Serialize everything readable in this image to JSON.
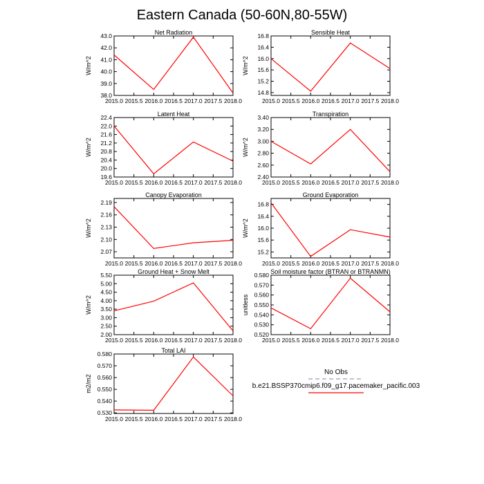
{
  "page_title": "Eastern Canada (50-60N,80-55W)",
  "legend": {
    "obs_label": "No Obs",
    "obs_color": "#aaaacc",
    "model_label": "b.e21.BSSP370cmip6.f09_g17.pacemaker_pacific.003",
    "model_color": "#ff0000"
  },
  "chart_data": [
    {
      "type": "line",
      "title": "Net Radiation",
      "ylabel": "W/m^2",
      "x": [
        2015,
        2016,
        2017,
        2018
      ],
      "values": [
        41.4,
        38.5,
        42.9,
        38.2
      ],
      "xlim": [
        2015,
        2018
      ],
      "ylim": [
        38.0,
        43.0
      ],
      "xticks": [
        "2015.0",
        "2015.5",
        "2016.0",
        "2016.5",
        "2017.0",
        "2017.5",
        "2018.0"
      ],
      "yticks": [
        "38.0",
        "39.0",
        "40.0",
        "41.0",
        "42.0",
        "43.0"
      ]
    },
    {
      "type": "line",
      "title": "Sensible Heat",
      "ylabel": "W/m^2",
      "x": [
        2015,
        2016,
        2017,
        2018
      ],
      "values": [
        16.0,
        14.85,
        16.55,
        15.65
      ],
      "xlim": [
        2015,
        2018
      ],
      "ylim": [
        14.7,
        16.8
      ],
      "xticks": [
        "2015.0",
        "2015.5",
        "2016.0",
        "2016.5",
        "2017.0",
        "2017.5",
        "2018.0"
      ],
      "yticks": [
        "14.8",
        "15.2",
        "15.6",
        "16.0",
        "16.4",
        "16.8"
      ]
    },
    {
      "type": "line",
      "title": "Latent Heat",
      "ylabel": "W/m^2",
      "x": [
        2015,
        2016,
        2017,
        2018
      ],
      "values": [
        22.0,
        19.75,
        21.25,
        20.35
      ],
      "xlim": [
        2015,
        2018
      ],
      "ylim": [
        19.6,
        22.4
      ],
      "xticks": [
        "2015.0",
        "2015.5",
        "2016.0",
        "2016.5",
        "2017.0",
        "2017.5",
        "2018.0"
      ],
      "yticks": [
        "19.6",
        "20.0",
        "20.4",
        "20.8",
        "21.2",
        "21.6",
        "22.0",
        "22.4"
      ]
    },
    {
      "type": "line",
      "title": "Transpiration",
      "ylabel": "W/m^2",
      "x": [
        2015,
        2016,
        2017,
        2018
      ],
      "values": [
        3.0,
        2.62,
        3.2,
        2.49
      ],
      "xlim": [
        2015,
        2018
      ],
      "ylim": [
        2.4,
        3.4
      ],
      "xticks": [
        "2015.0",
        "2015.5",
        "2016.0",
        "2016.5",
        "2017.0",
        "2017.5",
        "2018.0"
      ],
      "yticks": [
        "2.40",
        "2.60",
        "2.80",
        "3.00",
        "3.20",
        "3.40"
      ]
    },
    {
      "type": "line",
      "title": "Canopy Evaporation",
      "ylabel": "W/m^2",
      "x": [
        2015,
        2016,
        2017,
        2018
      ],
      "values": [
        2.18,
        2.078,
        2.092,
        2.098
      ],
      "xlim": [
        2015,
        2018
      ],
      "ylim": [
        2.055,
        2.2
      ],
      "xticks": [
        "2015.0",
        "2015.5",
        "2016.0",
        "2016.5",
        "2017.0",
        "2017.5",
        "2018.0"
      ],
      "yticks": [
        "2.07",
        "2.10",
        "2.13",
        "2.16",
        "2.19"
      ]
    },
    {
      "type": "line",
      "title": "Ground Evaporation",
      "ylabel": "W/m^2",
      "x": [
        2015,
        2016,
        2017,
        2018
      ],
      "values": [
        16.85,
        15.05,
        15.95,
        15.7
      ],
      "xlim": [
        2015,
        2018
      ],
      "ylim": [
        15.0,
        17.0
      ],
      "xticks": [
        "2015.0",
        "2015.5",
        "2016.0",
        "2016.5",
        "2017.0",
        "2017.5",
        "2018.0"
      ],
      "yticks": [
        "15.2",
        "15.6",
        "16.0",
        "16.4",
        "16.8"
      ]
    },
    {
      "type": "line",
      "title": "Ground Heat + Snow Melt",
      "ylabel": "W/m^2",
      "x": [
        2015,
        2016,
        2017,
        2018
      ],
      "values": [
        3.4,
        3.97,
        5.05,
        2.22
      ],
      "xlim": [
        2015,
        2018
      ],
      "ylim": [
        2.0,
        5.5
      ],
      "xticks": [
        "2015.0",
        "2015.5",
        "2016.0",
        "2016.5",
        "2017.0",
        "2017.5",
        "2018.0"
      ],
      "yticks": [
        "2.00",
        "2.50",
        "3.00",
        "3.50",
        "4.00",
        "4.50",
        "5.00",
        "5.50"
      ]
    },
    {
      "type": "line",
      "title": "Soil moisture factor (BTRAN or BTRANMN)",
      "ylabel": "unitless",
      "x": [
        2015,
        2016,
        2017,
        2018
      ],
      "values": [
        0.547,
        0.526,
        0.577,
        0.543
      ],
      "xlim": [
        2015,
        2018
      ],
      "ylim": [
        0.52,
        0.58
      ],
      "xticks": [
        "2015.0",
        "2015.5",
        "2016.0",
        "2016.5",
        "2017.0",
        "2017.5",
        "2018.0"
      ],
      "yticks": [
        "0.520",
        "0.530",
        "0.540",
        "0.550",
        "0.560",
        "0.570",
        "0.580"
      ]
    },
    {
      "type": "line",
      "title": "Total LAI",
      "ylabel": "m2/m2",
      "x": [
        2015,
        2016,
        2017,
        2018
      ],
      "values": [
        0.5325,
        0.5322,
        0.5775,
        0.5445
      ],
      "xlim": [
        2015,
        2018
      ],
      "ylim": [
        0.5295,
        0.58
      ],
      "xticks": [
        "2015.0",
        "2015.5",
        "2016.0",
        "2016.5",
        "2017.0",
        "2017.5",
        "2018.0"
      ],
      "yticks": [
        "0.530",
        "0.540",
        "0.550",
        "0.560",
        "0.570",
        "0.580"
      ]
    }
  ]
}
